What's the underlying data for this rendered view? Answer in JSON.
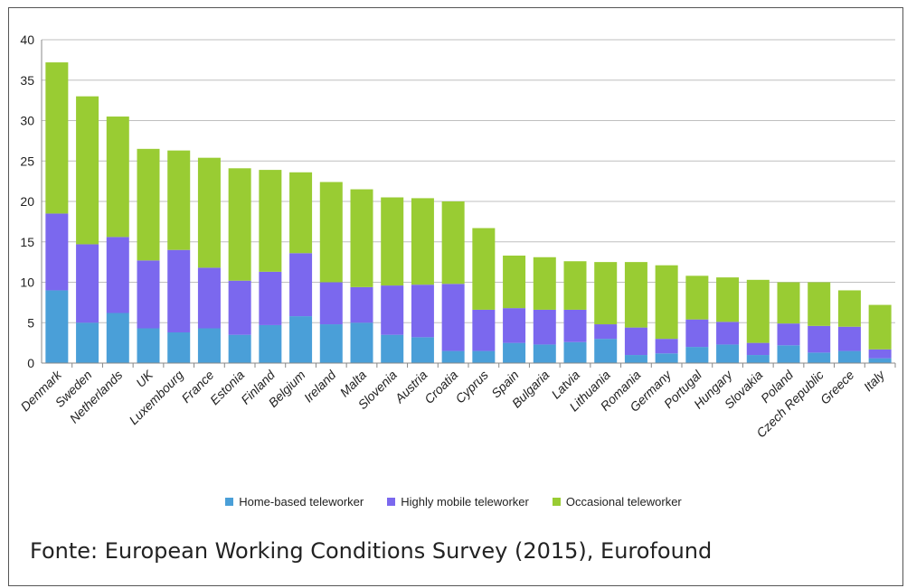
{
  "chart_data": {
    "type": "bar",
    "stacked": true,
    "categories": [
      "Denmark",
      "Sweden",
      "Netherlands",
      "UK",
      "Luxembourg",
      "France",
      "Estonia",
      "Finland",
      "Belgium",
      "Ireland",
      "Malta",
      "Slovenia",
      "Austria",
      "Croatia",
      "Cyprus",
      "Spain",
      "Bulgaria",
      "Latvia",
      "Lithuania",
      "Romania",
      "Germany",
      "Portugal",
      "Hungary",
      "Slovakia",
      "Poland",
      "Czech Republic",
      "Greece",
      "Italy"
    ],
    "series": [
      {
        "name": "Home-based teleworker",
        "color": "#4a9fd8",
        "values": [
          9,
          5,
          6.2,
          4.3,
          3.8,
          4.3,
          3.5,
          4.7,
          5.8,
          4.8,
          5,
          3.5,
          3.2,
          1.5,
          1.5,
          2.5,
          2.3,
          2.6,
          3,
          1,
          1.2,
          2,
          2.3,
          1,
          2.2,
          1.3,
          1.5,
          0.6
        ]
      },
      {
        "name": "Highly mobile teleworker",
        "color": "#7b68ee",
        "values": [
          9.5,
          9.7,
          9.4,
          8.4,
          10.2,
          7.5,
          6.7,
          6.6,
          7.8,
          5.2,
          4.4,
          6.1,
          6.5,
          8.3,
          5.1,
          4.3,
          4.3,
          4,
          1.8,
          3.4,
          1.8,
          3.4,
          2.8,
          1.5,
          2.7,
          3.3,
          3,
          1.1
        ]
      },
      {
        "name": "Occasional teleworker",
        "color": "#99cc33",
        "values": [
          18.7,
          18.3,
          14.9,
          13.8,
          12.3,
          13.6,
          13.9,
          12.6,
          10,
          12.4,
          12.1,
          10.9,
          10.7,
          10.2,
          10.1,
          6.5,
          6.5,
          6,
          7.7,
          8.1,
          9.1,
          5.4,
          5.5,
          7.8,
          5.1,
          5.4,
          4.5,
          5.5
        ]
      }
    ],
    "yticks": [
      "0",
      "5",
      "10",
      "15",
      "20",
      "25",
      "30",
      "35",
      "40"
    ],
    "ylim": [
      0,
      40
    ],
    "grid": true,
    "legend": "bottom"
  },
  "source": "Fonte: European Working Conditions Survey (2015), Eurofound"
}
